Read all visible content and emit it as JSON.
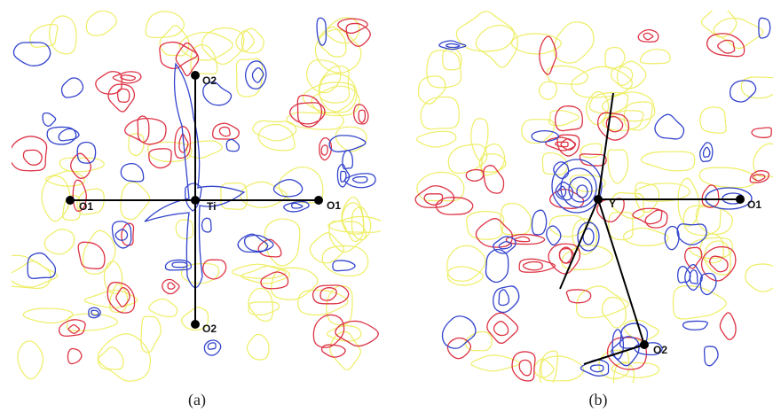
{
  "figure": {
    "panel_a": {
      "caption": "(a)",
      "central_atom": "Ti",
      "labels": {
        "o2_top": "O2",
        "o2_bottom": "O2",
        "o1_left": "O1",
        "o1_right": "O1",
        "center": "Ti"
      }
    },
    "panel_b": {
      "caption": "(b)",
      "central_atom": "Y",
      "labels": {
        "o1_right": "O1",
        "o2_bottom": "O2",
        "center": "Y"
      }
    },
    "contour_colors": {
      "positive": "#3344cc",
      "negative": "#dd3344",
      "zero": "#eeee66"
    }
  }
}
